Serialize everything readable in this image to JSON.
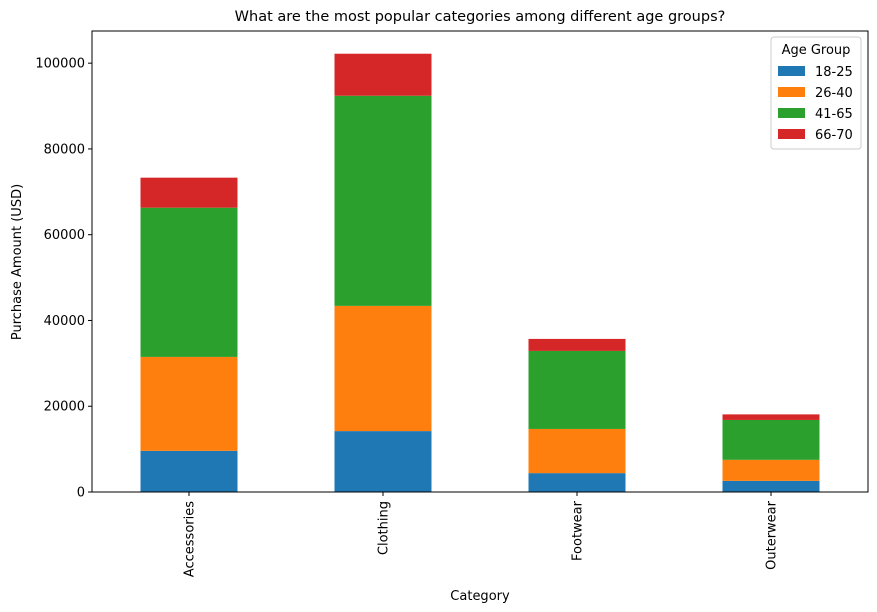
{
  "chart_data": {
    "type": "bar",
    "stacked": true,
    "title": "What are the most popular categories among different age groups?",
    "xlabel": "Category",
    "ylabel": "Purchase Amount (USD)",
    "categories": [
      "Accessories",
      "Clothing",
      "Footwear",
      "Outerwear"
    ],
    "ylim": [
      0,
      107500
    ],
    "yticks": [
      0,
      20000,
      40000,
      60000,
      80000,
      100000
    ],
    "ytick_labels": [
      "0",
      "20000",
      "40000",
      "60000",
      "80000",
      "100000"
    ],
    "grid": false,
    "legend": {
      "title": "Age Group",
      "position": "top-right"
    },
    "series": [
      {
        "name": "18-25",
        "color": "#1f77b4",
        "values": [
          9600,
          14200,
          4400,
          2600
        ]
      },
      {
        "name": "26-40",
        "color": "#ff7f0e",
        "values": [
          21900,
          29200,
          10300,
          4900
        ]
      },
      {
        "name": "41-65",
        "color": "#2ca02c",
        "values": [
          34800,
          49000,
          18200,
          9300
        ]
      },
      {
        "name": "66-70",
        "color": "#d62728",
        "values": [
          7000,
          9800,
          2800,
          1300
        ]
      }
    ]
  }
}
